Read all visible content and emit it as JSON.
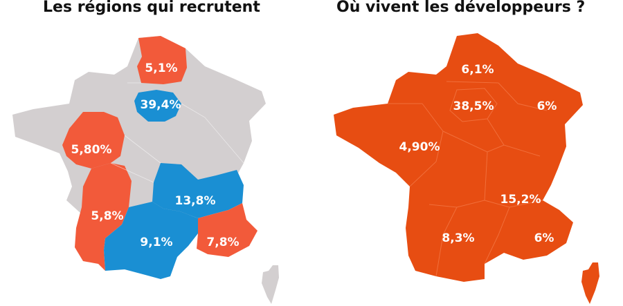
{
  "left_map": {
    "title": "Les régions qui recrutent",
    "labels": {
      "hauts_de_france": "5,1%",
      "ile_de_france": "39,4%",
      "pays_de_la_loire": "5,80%",
      "nouvelle_aquitaine": "5,8%",
      "auvergne_rhone_alpes": "13,8%",
      "occitanie": "9,1%",
      "paca": "7,8%"
    },
    "colors": {
      "base": "#d3cfd0",
      "hiring": "#f25a3a",
      "highlight": "#1a8fd3"
    }
  },
  "right_map": {
    "title": "Où vivent les développeurs ?",
    "labels": {
      "hauts_de_france": "6,1%",
      "ile_de_france": "38,5%",
      "grand_est": "6%",
      "bretagne_ouest": "4,90%",
      "auvergne_rhone_alpes": "15,2%",
      "occitanie": "8,3%",
      "paca": "6%"
    },
    "colors": {
      "fill": "#e74d12",
      "border": "#f47b4a"
    }
  }
}
